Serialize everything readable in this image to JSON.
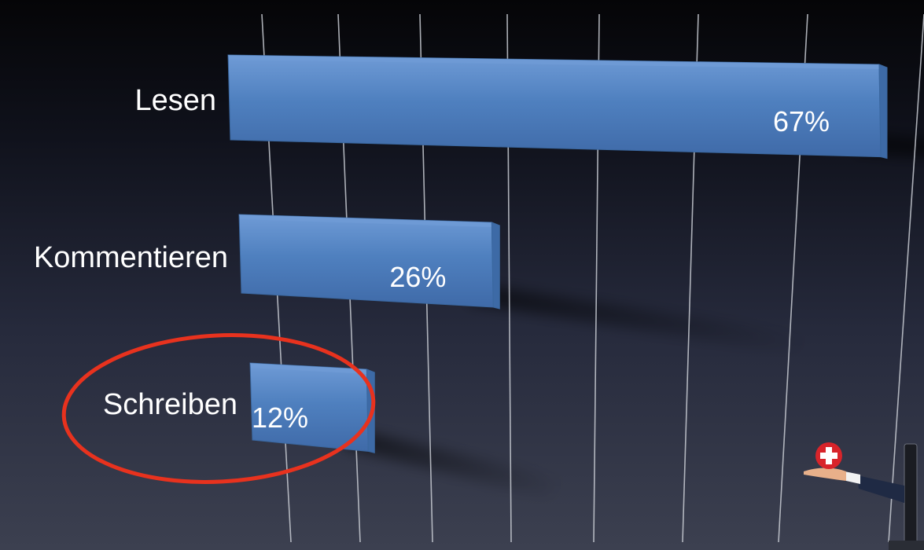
{
  "chart_data": {
    "type": "bar",
    "orientation": "horizontal",
    "categories": [
      "Lesen",
      "Kommentieren",
      "Schreiben"
    ],
    "values": [
      67,
      26,
      12
    ],
    "value_labels": [
      "67%",
      "26%",
      "12%"
    ],
    "xlim": [
      0,
      70
    ],
    "grid": true,
    "highlighted_category": "Schreiben",
    "colors": {
      "bar": "#4f80bf",
      "bar_top": "#6f9bd6",
      "bar_edge": "#3a679f",
      "highlight_ring": "#e8321e",
      "text": "#ffffff"
    }
  },
  "decoration": {
    "icon": "hand-holding-swiss-badge-icon"
  }
}
